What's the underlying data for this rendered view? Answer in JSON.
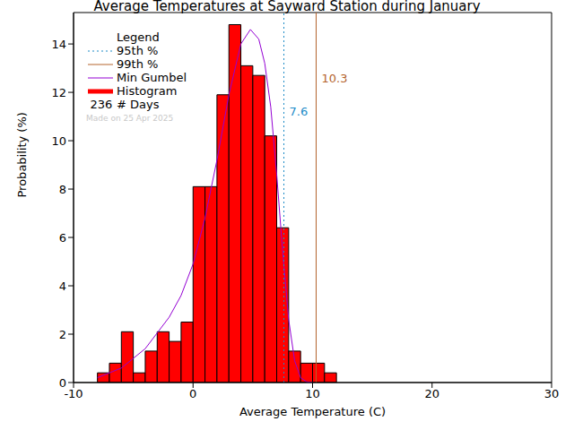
{
  "chart_data": {
    "type": "histogram",
    "title": "Average Temperatures at Sayward Station during January",
    "x_label": "Average Temperature (C)",
    "y_label": "Probability (%)",
    "bins": [
      -8,
      -7,
      -6,
      -5,
      -4,
      -3,
      -2,
      -1,
      0,
      1,
      2,
      3,
      4,
      5,
      6,
      7,
      8,
      9,
      10,
      11,
      12
    ],
    "values": [
      0.4,
      0.8,
      2.1,
      0.4,
      1.3,
      2.1,
      1.7,
      2.5,
      8.1,
      8.1,
      11.9,
      14.8,
      13.1,
      12.7,
      10.2,
      6.4,
      1.3,
      0.8,
      0.8,
      0.4
    ],
    "color": "#ff0000",
    "histogram_name": "Histogram",
    "xlim": [
      -10,
      30
    ],
    "xticks": [
      -10,
      0,
      10,
      20,
      30
    ],
    "ylim": [
      0,
      15.3
    ],
    "yticks": [
      0,
      2,
      4,
      6,
      8,
      10,
      12,
      14
    ],
    "legend_title": "Legend",
    "series": [
      {
        "name": "Min Gumbel",
        "type": "line",
        "color": "#9400d3",
        "x": [
          -8,
          -6,
          -4,
          -2,
          -1,
          0,
          1,
          2,
          3,
          4,
          4.8,
          5.5,
          6,
          6.5,
          7,
          7.5,
          8,
          8.5,
          9,
          9.5,
          10
        ],
        "values": [
          0.2,
          0.6,
          1.4,
          2.7,
          3.6,
          4.9,
          6.8,
          9.2,
          11.9,
          14.0,
          14.6,
          14.2,
          13.2,
          11.4,
          8.6,
          5.4,
          2.6,
          0.9,
          0.2,
          0.03,
          0
        ]
      }
    ],
    "reference_lines": [
      {
        "name": "95th %",
        "value": 7.6,
        "color": "#1e8cc8",
        "line_style": "dotted"
      },
      {
        "name": "99th %",
        "value": 10.3,
        "color": "#b4642d",
        "line_style": "solid"
      }
    ],
    "days": 236,
    "days_label": "# Days",
    "note": "Made on 25 Apr 2025"
  }
}
